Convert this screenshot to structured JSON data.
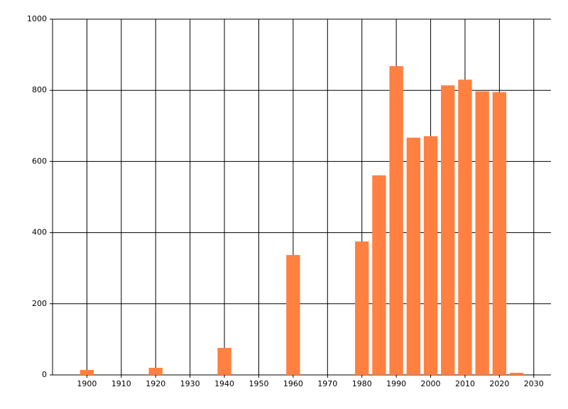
{
  "chart_data": {
    "type": "bar",
    "x": [
      1900,
      1920,
      1940,
      1960,
      1980,
      1985,
      1990,
      1995,
      2000,
      2005,
      2010,
      2015,
      2020,
      2025
    ],
    "values": [
      14,
      20,
      76,
      337,
      375,
      561,
      868,
      667,
      671,
      814,
      830,
      797,
      795,
      6
    ],
    "color": "#ff8041",
    "xlim": [
      1890,
      2035
    ],
    "xticks": [
      1900,
      1910,
      1920,
      1930,
      1940,
      1950,
      1960,
      1970,
      1980,
      1990,
      2000,
      2010,
      2020,
      2030
    ],
    "ylim": [
      0,
      1000
    ],
    "yticks": [
      0,
      200,
      400,
      600,
      800,
      1000
    ],
    "grid": true
  }
}
